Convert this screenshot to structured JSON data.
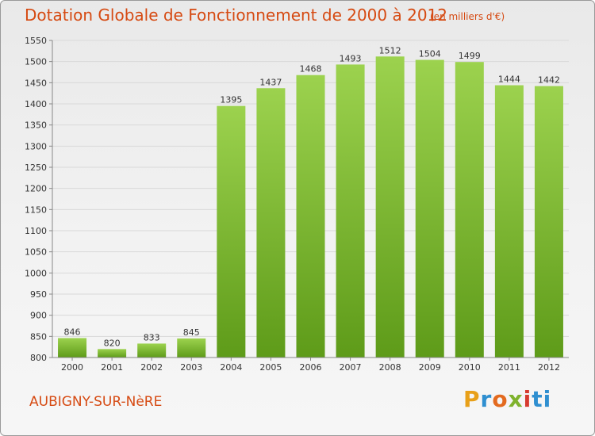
{
  "header": {
    "title": "Dotation Globale de Fonctionnement de 2000 à 2012",
    "unit": "(en milliers d'€)"
  },
  "footer": {
    "commune": "AUBIGNY-SUR-NèRE",
    "logo_letters": [
      "P",
      "r",
      "o",
      "x",
      "i",
      "ti"
    ]
  },
  "colors": {
    "title": "#d64a12",
    "bar_top": "#9cd24e",
    "bar_bottom": "#5e9b19",
    "grid": "#d9d9d9",
    "axis": "#888888"
  },
  "chart_data": {
    "type": "bar",
    "title": "Dotation Globale de Fonctionnement de 2000 à 2012",
    "xlabel": "",
    "ylabel": "",
    "ylim": [
      800,
      1550
    ],
    "yticks": [
      800,
      850,
      900,
      950,
      1000,
      1050,
      1100,
      1150,
      1200,
      1250,
      1300,
      1350,
      1400,
      1450,
      1500,
      1550
    ],
    "grid": true,
    "categories": [
      "2000",
      "2001",
      "2002",
      "2003",
      "2004",
      "2005",
      "2006",
      "2007",
      "2008",
      "2009",
      "2010",
      "2011",
      "2012"
    ],
    "values": [
      846,
      820,
      833,
      845,
      1395,
      1437,
      1468,
      1493,
      1512,
      1504,
      1499,
      1444,
      1442
    ]
  }
}
